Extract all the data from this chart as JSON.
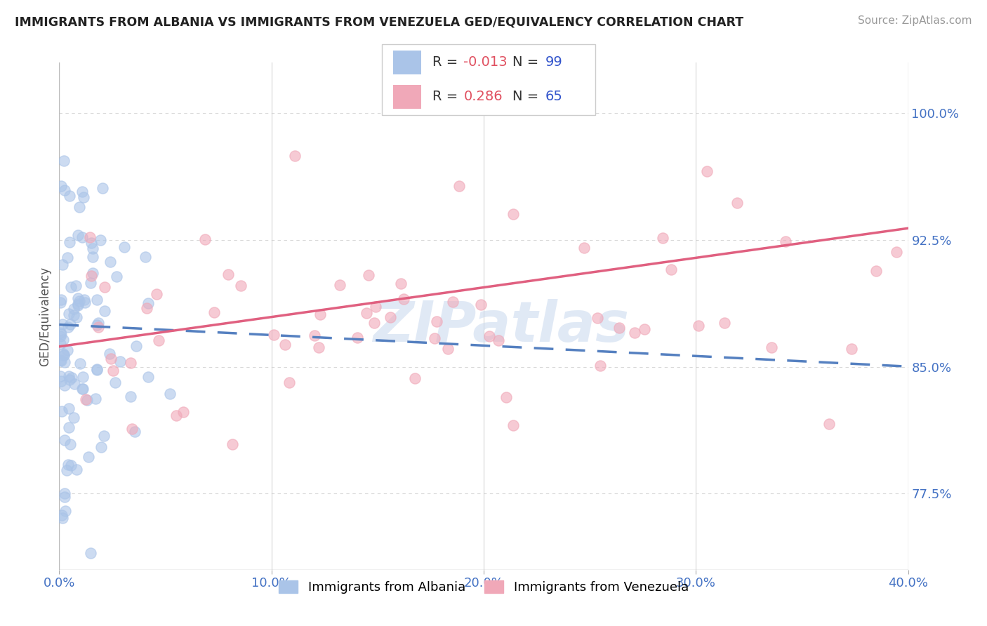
{
  "title": "IMMIGRANTS FROM ALBANIA VS IMMIGRANTS FROM VENEZUELA GED/EQUIVALENCY CORRELATION CHART",
  "source": "Source: ZipAtlas.com",
  "ylabel": "GED/Equivalency",
  "xlim": [
    0.0,
    40.0
  ],
  "ylim": [
    73.0,
    103.0
  ],
  "yticks": [
    77.5,
    85.0,
    92.5,
    100.0
  ],
  "ytick_labels": [
    "77.5%",
    "85.0%",
    "92.5%",
    "100.0%"
  ],
  "xticks": [
    0.0,
    10.0,
    20.0,
    30.0,
    40.0
  ],
  "xtick_labels": [
    "0.0%",
    "10.0%",
    "20.0%",
    "30.0%",
    "40.0%"
  ],
  "albania_color": "#aac4e8",
  "venezuela_color": "#f0a8b8",
  "albania_R": -0.013,
  "albania_N": 99,
  "venezuela_R": 0.286,
  "venezuela_N": 65,
  "legend_label_albania": "Immigrants from Albania",
  "legend_label_venezuela": "Immigrants from Venezuela",
  "watermark": "ZIPatlas",
  "background_color": "#ffffff",
  "grid_color": "#d8d8d8",
  "title_color": "#222222",
  "axis_tick_color": "#4472c4",
  "albania_line_color": "#5580c0",
  "venezuela_line_color": "#e06080",
  "legend_R_color": "#e05060",
  "legend_N_color": "#3355cc"
}
